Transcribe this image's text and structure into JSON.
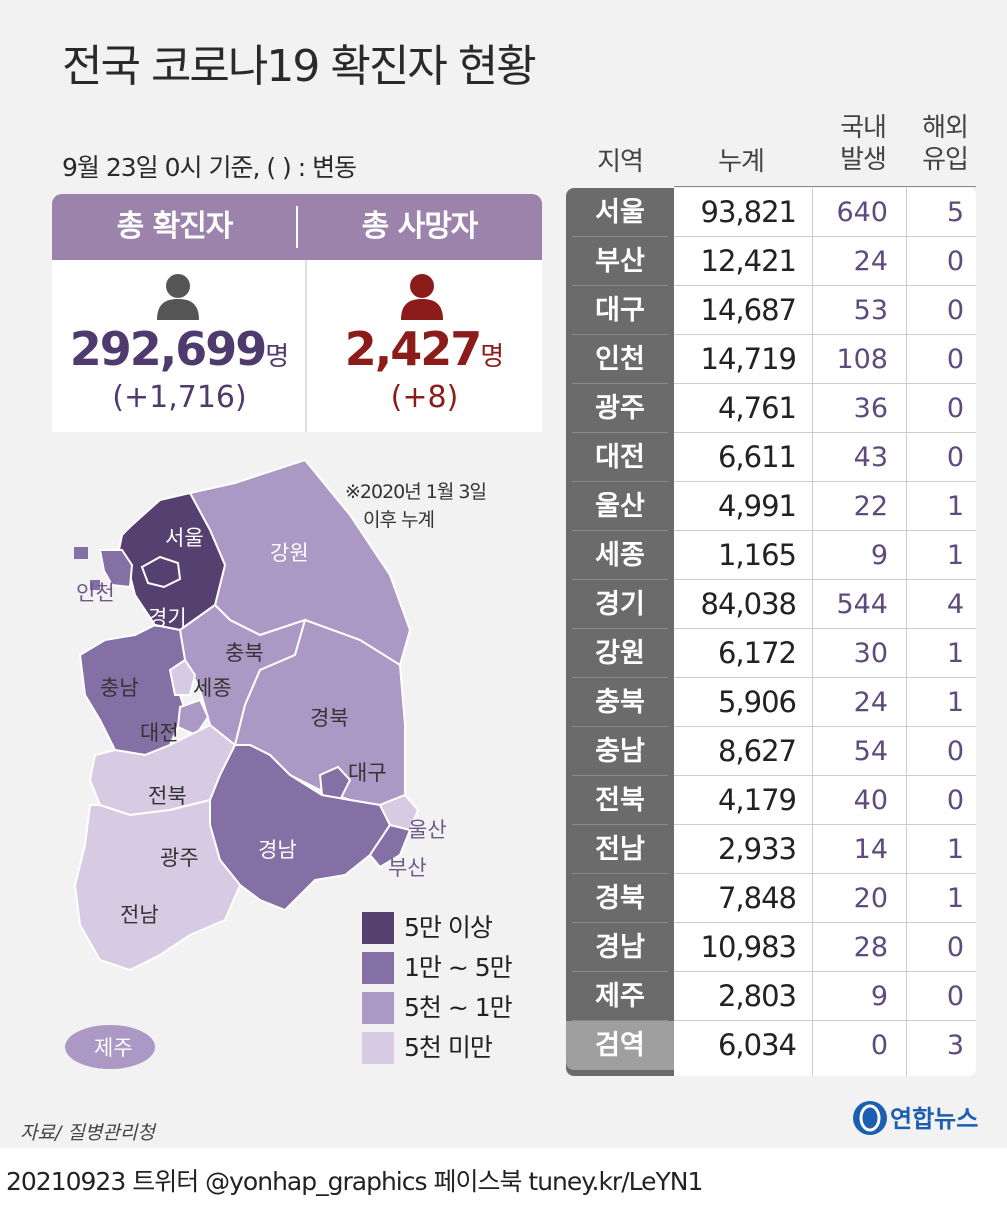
{
  "title": "전국 코로나19 확진자 현황",
  "basis": "9월 23일 0시 기준, ( ) : 변동",
  "totals": {
    "confirmed_label": "총 확진자",
    "confirmed_value": "292,699",
    "confirmed_unit": "명",
    "confirmed_change": "(+1,716)",
    "deaths_label": "총 사망자",
    "deaths_value": "2,427",
    "deaths_unit": "명",
    "deaths_change": "(+8)",
    "confirmed_color": "#4f3a6e",
    "deaths_color": "#8b1c1a"
  },
  "table_headers": {
    "region": "지역",
    "cumulative": "누계",
    "domestic_1": "국내",
    "domestic_2": "발생",
    "overseas_1": "해외",
    "overseas_2": "유입"
  },
  "chart_data": {
    "type": "table",
    "columns": [
      "지역",
      "누계",
      "국내 발생",
      "해외 유입"
    ],
    "rows": [
      {
        "region": "서울",
        "cumulative": "93,821",
        "domestic": "640",
        "overseas": "5"
      },
      {
        "region": "부산",
        "cumulative": "12,421",
        "domestic": "24",
        "overseas": "0"
      },
      {
        "region": "대구",
        "cumulative": "14,687",
        "domestic": "53",
        "overseas": "0"
      },
      {
        "region": "인천",
        "cumulative": "14,719",
        "domestic": "108",
        "overseas": "0"
      },
      {
        "region": "광주",
        "cumulative": "4,761",
        "domestic": "36",
        "overseas": "0"
      },
      {
        "region": "대전",
        "cumulative": "6,611",
        "domestic": "43",
        "overseas": "0"
      },
      {
        "region": "울산",
        "cumulative": "4,991",
        "domestic": "22",
        "overseas": "1"
      },
      {
        "region": "세종",
        "cumulative": "1,165",
        "domestic": "9",
        "overseas": "1"
      },
      {
        "region": "경기",
        "cumulative": "84,038",
        "domestic": "544",
        "overseas": "4"
      },
      {
        "region": "강원",
        "cumulative": "6,172",
        "domestic": "30",
        "overseas": "1"
      },
      {
        "region": "충북",
        "cumulative": "5,906",
        "domestic": "24",
        "overseas": "1"
      },
      {
        "region": "충남",
        "cumulative": "8,627",
        "domestic": "54",
        "overseas": "0"
      },
      {
        "region": "전북",
        "cumulative": "4,179",
        "domestic": "40",
        "overseas": "0"
      },
      {
        "region": "전남",
        "cumulative": "2,933",
        "domestic": "14",
        "overseas": "1"
      },
      {
        "region": "경북",
        "cumulative": "7,848",
        "domestic": "20",
        "overseas": "1"
      },
      {
        "region": "경남",
        "cumulative": "10,983",
        "domestic": "28",
        "overseas": "0"
      },
      {
        "region": "제주",
        "cumulative": "2,803",
        "domestic": "9",
        "overseas": "0"
      },
      {
        "region": "검역",
        "cumulative": "6,034",
        "domestic": "0",
        "overseas": "3"
      }
    ]
  },
  "map": {
    "note_1": "※2020년 1월 3일",
    "note_2": "이후 누계",
    "labels": {
      "seoul": "서울",
      "gyeonggi": "경기",
      "incheon": "인천",
      "gangwon": "강원",
      "chungbuk": "충북",
      "chungnam": "충남",
      "sejong": "세종",
      "daejeon": "대전",
      "gyeongbuk": "경북",
      "daegu": "대구",
      "jeonbuk": "전북",
      "gwangju": "광주",
      "jeonnam": "전남",
      "gyeongnam": "경남",
      "ulsan": "울산",
      "busan": "부산",
      "jeju": "제주"
    },
    "colors": {
      "level_1": "#55406f",
      "level_2": "#8570a6",
      "level_3": "#ac98c4",
      "level_4": "#d6cbe2"
    }
  },
  "legend": [
    {
      "label": "5만 이상",
      "color": "#55406f"
    },
    {
      "label": "1만 ~ 5만",
      "color": "#8570a6"
    },
    {
      "label": "5천 ~ 1만",
      "color": "#ac98c4"
    },
    {
      "label": "5천 미만",
      "color": "#d6cbe2"
    }
  ],
  "source": "자료/ 질병관리청",
  "logo": "연합뉴스",
  "footer": "20210923 트위터 @yonhap_graphics  페이스북 tuney.kr/LeYN1"
}
